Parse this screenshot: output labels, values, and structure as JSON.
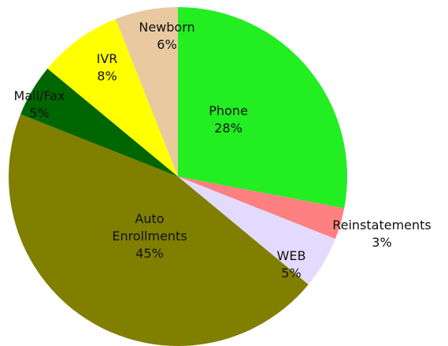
{
  "chart_data": {
    "type": "pie",
    "categories": [
      "Phone",
      "Reinstatements",
      "WEB",
      "Auto Enrollments",
      "Mail/Fax",
      "IVR",
      "Newborn"
    ],
    "values": [
      28,
      3,
      5,
      45,
      5,
      8,
      6
    ],
    "value_labels": [
      "28%",
      "3%",
      "5%",
      "45%",
      "5%",
      "8%",
      "6%"
    ],
    "colors": [
      "#22ee22",
      "#ff8080",
      "#e3dbff",
      "#807f00",
      "#006600",
      "#ffff00",
      "#e8c9a0"
    ]
  }
}
